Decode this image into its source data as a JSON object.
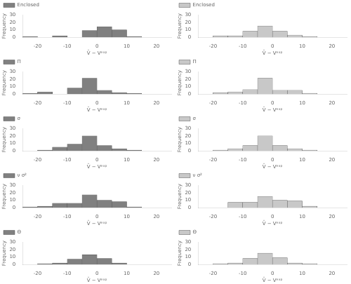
{
  "chart_data": [
    {
      "type": "histogram",
      "bins": [
        -25,
        -20,
        -15,
        -10,
        -5,
        0,
        5,
        10,
        15,
        20,
        25
      ],
      "series": [
        {
          "name": "Enclosed",
          "color": "#808080",
          "values": [
            1,
            0,
            2,
            0,
            9,
            14,
            10,
            1,
            0,
            0
          ]
        }
      ],
      "xlabel": "V̂ − Vᵉˣᵖ",
      "ylabel": "Frequency",
      "xlim": [
        -25,
        25
      ],
      "ylim": [
        0,
        30
      ],
      "xticks": [
        -20,
        -10,
        0,
        10,
        20
      ],
      "yticks": [
        0,
        10,
        20,
        30
      ],
      "legend": "upper left",
      "grid": false
    },
    {
      "type": "histogram",
      "bins": [
        -25,
        -20,
        -15,
        -10,
        -5,
        0,
        5,
        10,
        15,
        20,
        25
      ],
      "series": [
        {
          "name": "Enclosed",
          "color": "#c8c8c8",
          "values": [
            0,
            2,
            2,
            8,
            15,
            8,
            3,
            1,
            0,
            0
          ]
        }
      ],
      "xlabel": "V̂ − Vᵉˣᵖ",
      "ylabel": "Frequency",
      "xlim": [
        -25,
        25
      ],
      "ylim": [
        0,
        30
      ],
      "xticks": [
        -20,
        -10,
        0,
        10,
        20
      ],
      "yticks": [
        0,
        10,
        20,
        30
      ],
      "legend": "upper left",
      "grid": false
    },
    {
      "type": "histogram",
      "bins": [
        -25,
        -20,
        -15,
        -10,
        -5,
        0,
        5,
        10,
        15,
        20,
        25
      ],
      "series": [
        {
          "name": "Π",
          "color": "#808080",
          "values": [
            1,
            3,
            0,
            8,
            21,
            5,
            2,
            1,
            0,
            0
          ]
        }
      ],
      "xlabel": "V̂ − Vᵉˣᵖ",
      "ylabel": "Frequency",
      "xlim": [
        -25,
        25
      ],
      "ylim": [
        0,
        30
      ],
      "xticks": [
        -20,
        -10,
        0,
        10,
        20
      ],
      "yticks": [
        0,
        10,
        20,
        30
      ],
      "legend": "upper left",
      "grid": false
    },
    {
      "type": "histogram",
      "bins": [
        -25,
        -20,
        -15,
        -10,
        -5,
        0,
        5,
        10,
        15,
        20,
        25
      ],
      "series": [
        {
          "name": "Π",
          "color": "#c8c8c8",
          "values": [
            0,
            2,
            3,
            6,
            21,
            5,
            5,
            1,
            0,
            0
          ]
        }
      ],
      "xlabel": "V̂ − Vᵉˣᵖ",
      "ylabel": "Frequency",
      "xlim": [
        -25,
        25
      ],
      "ylim": [
        0,
        30
      ],
      "xticks": [
        -20,
        -10,
        0,
        10,
        20
      ],
      "yticks": [
        0,
        10,
        20,
        30
      ],
      "legend": "upper left",
      "grid": false
    },
    {
      "type": "histogram",
      "bins": [
        -25,
        -20,
        -15,
        -10,
        -5,
        0,
        5,
        10,
        15,
        20,
        25
      ],
      "series": [
        {
          "name": "σ",
          "color": "#808080",
          "values": [
            0,
            1,
            5,
            9,
            20,
            7,
            3,
            1,
            0,
            0
          ]
        }
      ],
      "xlabel": "V̂ − Vᵉˣᵖ",
      "ylabel": "Frequency",
      "xlim": [
        -25,
        25
      ],
      "ylim": [
        0,
        30
      ],
      "xticks": [
        -20,
        -10,
        0,
        10,
        20
      ],
      "yticks": [
        0,
        10,
        20,
        30
      ],
      "legend": "upper left",
      "grid": false
    },
    {
      "type": "histogram",
      "bins": [
        -25,
        -20,
        -15,
        -10,
        -5,
        0,
        5,
        10,
        15,
        20,
        25
      ],
      "series": [
        {
          "name": "σ",
          "color": "#c8c8c8",
          "values": [
            0,
            1,
            3,
            7,
            20,
            7,
            3,
            1,
            0,
            0
          ]
        }
      ],
      "xlabel": "V̂ − Vᵉˣᵖ",
      "ylabel": "Frequency",
      "xlim": [
        -25,
        25
      ],
      "ylim": [
        0,
        30
      ],
      "xticks": [
        -20,
        -10,
        0,
        10,
        20
      ],
      "yticks": [
        0,
        10,
        20,
        30
      ],
      "legend": "upper left",
      "grid": false
    },
    {
      "type": "histogram",
      "bins": [
        -25,
        -20,
        -15,
        -10,
        -5,
        0,
        5,
        10,
        15,
        20,
        25
      ],
      "series": [
        {
          "name": "ν σ²",
          "color": "#808080",
          "values": [
            1,
            2,
            6,
            6,
            17,
            10,
            8,
            1,
            0,
            0
          ]
        }
      ],
      "xlabel": "V̂ − Vᵉˣᵖ",
      "ylabel": "Frequency",
      "xlim": [
        -25,
        25
      ],
      "ylim": [
        0,
        30
      ],
      "xticks": [
        -20,
        -10,
        0,
        10,
        20
      ],
      "yticks": [
        0,
        10,
        20,
        30
      ],
      "legend": "upper left",
      "grid": false
    },
    {
      "type": "histogram",
      "bins": [
        -25,
        -20,
        -15,
        -10,
        -5,
        0,
        5,
        10,
        15,
        20,
        25
      ],
      "series": [
        {
          "name": "ν σ²",
          "color": "#c8c8c8",
          "values": [
            0,
            0,
            7,
            7,
            15,
            10,
            9,
            2,
            0,
            0
          ]
        }
      ],
      "xlabel": "V̂ − Vᵉˣᵖ",
      "ylabel": "Frequency",
      "xlim": [
        -25,
        25
      ],
      "ylim": [
        0,
        30
      ],
      "xticks": [
        -20,
        -10,
        0,
        10,
        20
      ],
      "yticks": [
        0,
        10,
        20,
        30
      ],
      "legend": "upper left",
      "grid": false
    },
    {
      "type": "histogram",
      "bins": [
        -25,
        -20,
        -15,
        -10,
        -5,
        0,
        5,
        10,
        15,
        20,
        25
      ],
      "series": [
        {
          "name": "Θ",
          "color": "#808080",
          "values": [
            0,
            1,
            2,
            7,
            13,
            8,
            2,
            0,
            0,
            0
          ]
        }
      ],
      "xlabel": "V̂ − Vᵉˣᵖ",
      "ylabel": "Frequency",
      "xlim": [
        -25,
        25
      ],
      "ylim": [
        0,
        30
      ],
      "xticks": [
        -20,
        -10,
        0,
        10,
        20
      ],
      "yticks": [
        0,
        10,
        20,
        30
      ],
      "legend": "upper left",
      "grid": false
    },
    {
      "type": "histogram",
      "bins": [
        -25,
        -20,
        -15,
        -10,
        -5,
        0,
        5,
        10,
        15,
        20,
        25
      ],
      "series": [
        {
          "name": "Θ",
          "color": "#c8c8c8",
          "values": [
            0,
            1,
            2,
            8,
            15,
            9,
            2,
            1,
            0,
            0
          ]
        }
      ],
      "xlabel": "V̂ − Vᵉˣᵖ",
      "ylabel": "Frequency",
      "xlim": [
        -25,
        25
      ],
      "ylim": [
        0,
        30
      ],
      "xticks": [
        -20,
        -10,
        0,
        10,
        20
      ],
      "yticks": [
        0,
        10,
        20,
        30
      ],
      "legend": "upper left",
      "grid": false
    }
  ]
}
